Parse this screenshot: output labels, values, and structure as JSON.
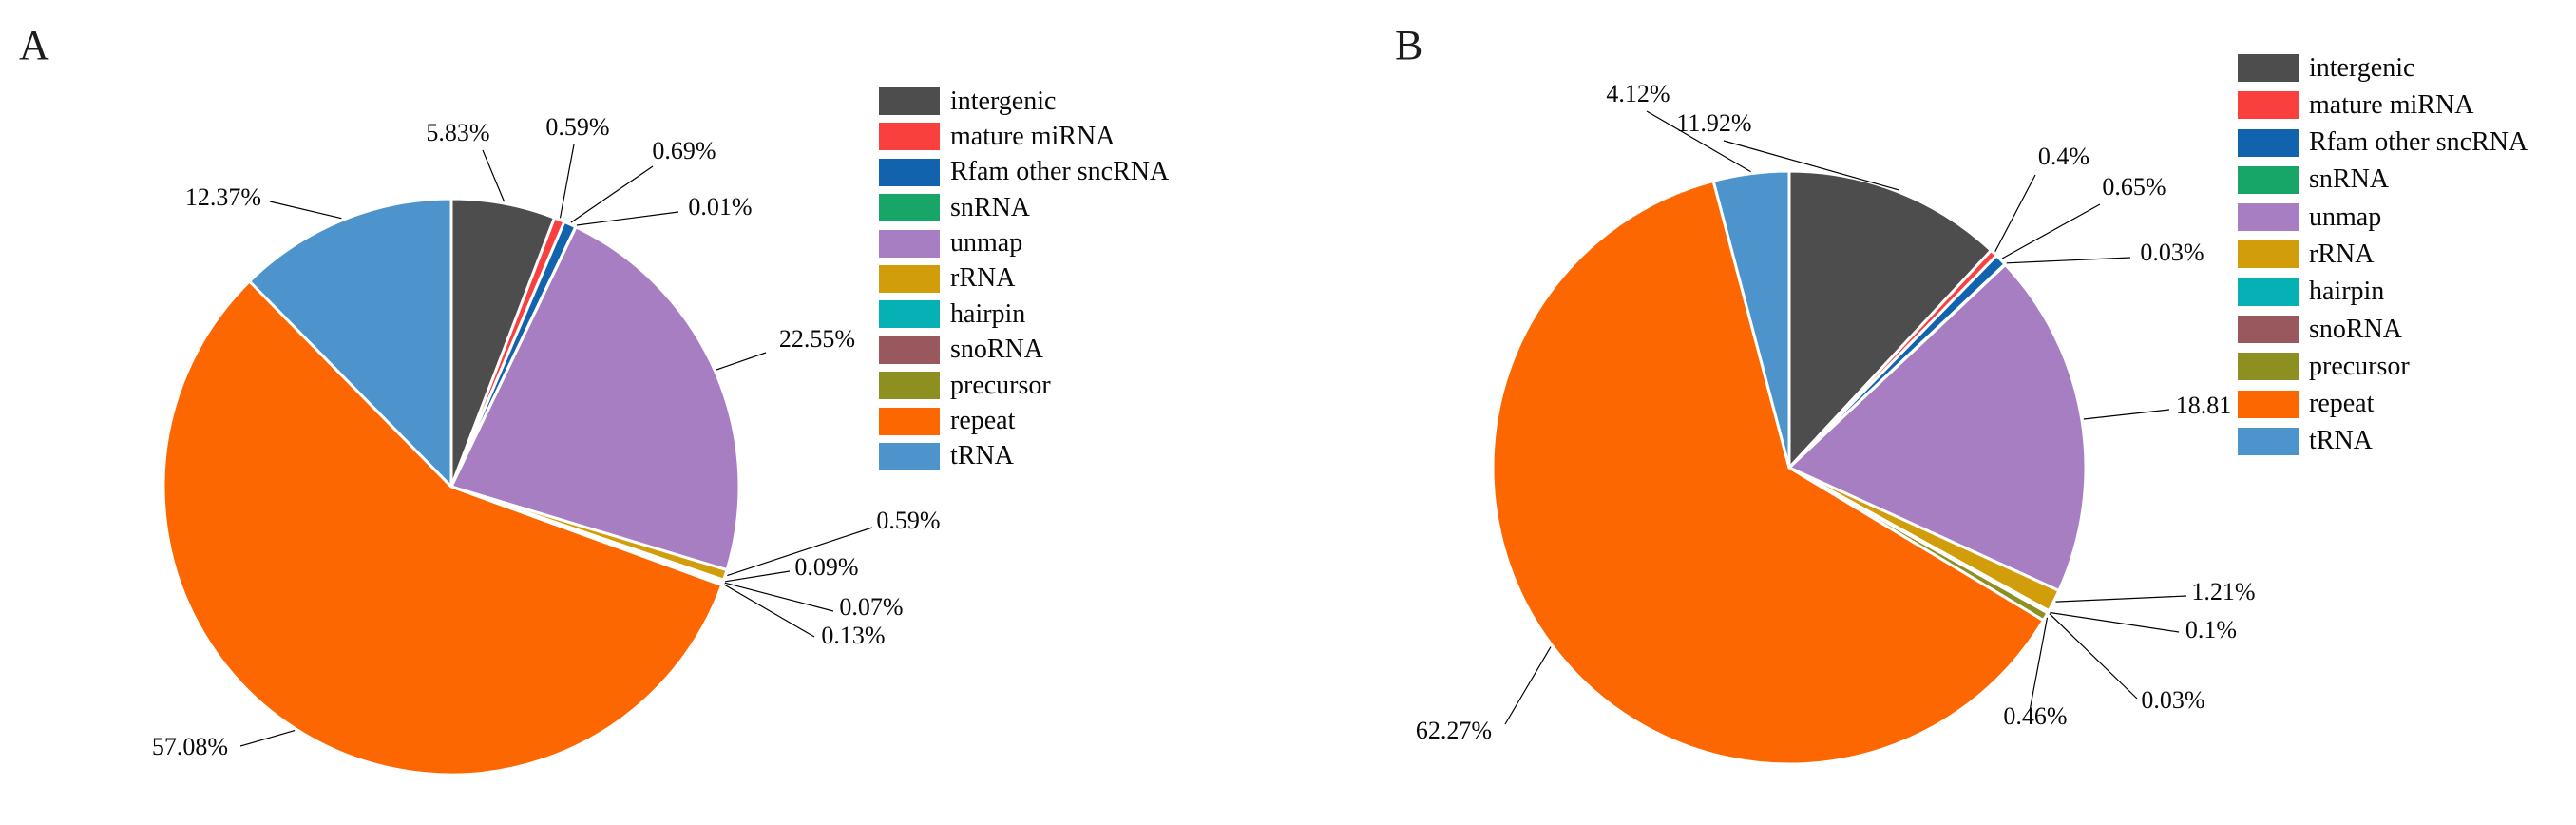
{
  "figure": {
    "background": "#ffffff",
    "text_color": "#0a0a0a",
    "leader_line_color": "#000000",
    "slice_separator_color": "#ffffff"
  },
  "legend": {
    "position": "right",
    "items": [
      {
        "label": "intergenic",
        "color": "#4d4d4d"
      },
      {
        "label": "mature miRNA",
        "color": "#f9403e"
      },
      {
        "label": "Rfam other sncRNA",
        "color": "#1263ae"
      },
      {
        "label": "snRNA",
        "color": "#18a568"
      },
      {
        "label": "unmap",
        "color": "#a87ec3"
      },
      {
        "label": "rRNA",
        "color": "#d19d0a"
      },
      {
        "label": "hairpin",
        "color": "#06b1b6"
      },
      {
        "label": "snoRNA",
        "color": "#99585e"
      },
      {
        "label": "precursor",
        "color": "#8e8f21"
      },
      {
        "label": "repeat",
        "color": "#fd6701"
      },
      {
        "label": "tRNA",
        "color": "#4e94cc"
      }
    ]
  },
  "chart_data": [
    {
      "type": "pie",
      "panel_label": "A",
      "start_angle_deg": 0,
      "direction": "clockwise",
      "legend_position": "right",
      "categories": [
        "intergenic",
        "mature miRNA",
        "Rfam other sncRNA",
        "snRNA",
        "unmap",
        "rRNA",
        "hairpin",
        "snoRNA",
        "precursor",
        "repeat",
        "tRNA"
      ],
      "values": [
        5.83,
        0.59,
        0.69,
        0.01,
        22.55,
        0.59,
        0.09,
        0.07,
        0.13,
        57.08,
        12.37
      ],
      "labels": [
        "5.83%",
        "0.59%",
        "0.69%",
        "0.01%",
        "22.55%",
        "0.59%",
        "0.09%",
        "0.07%",
        "0.13%",
        "57.08%",
        "12.37%"
      ],
      "colors": [
        "#4d4d4d",
        "#f9403e",
        "#1263ae",
        "#18a568",
        "#a87ec3",
        "#d19d0a",
        "#06b1b6",
        "#99585e",
        "#8e8f21",
        "#fd6701",
        "#4e94cc"
      ]
    },
    {
      "type": "pie",
      "panel_label": "B",
      "start_angle_deg": 0,
      "direction": "clockwise",
      "legend_position": "right",
      "categories": [
        "intergenic",
        "mature miRNA",
        "Rfam other sncRNA",
        "snRNA",
        "unmap",
        "rRNA",
        "hairpin",
        "snoRNA",
        "precursor",
        "repeat",
        "tRNA"
      ],
      "values": [
        11.92,
        0.4,
        0.65,
        0.03,
        18.81,
        1.21,
        0.1,
        0.03,
        0.46,
        62.27,
        4.12
      ],
      "labels": [
        "11.92%",
        "0.4%",
        "0.65%",
        "0.03%",
        "18.81",
        "1.21%",
        "0.1%",
        "0.03%",
        "0.46%",
        "62.27%",
        "4.12%"
      ],
      "colors": [
        "#4d4d4d",
        "#f9403e",
        "#1263ae",
        "#18a568",
        "#a87ec3",
        "#d19d0a",
        "#06b1b6",
        "#99585e",
        "#8e8f21",
        "#fd6701",
        "#4e94cc"
      ]
    }
  ]
}
